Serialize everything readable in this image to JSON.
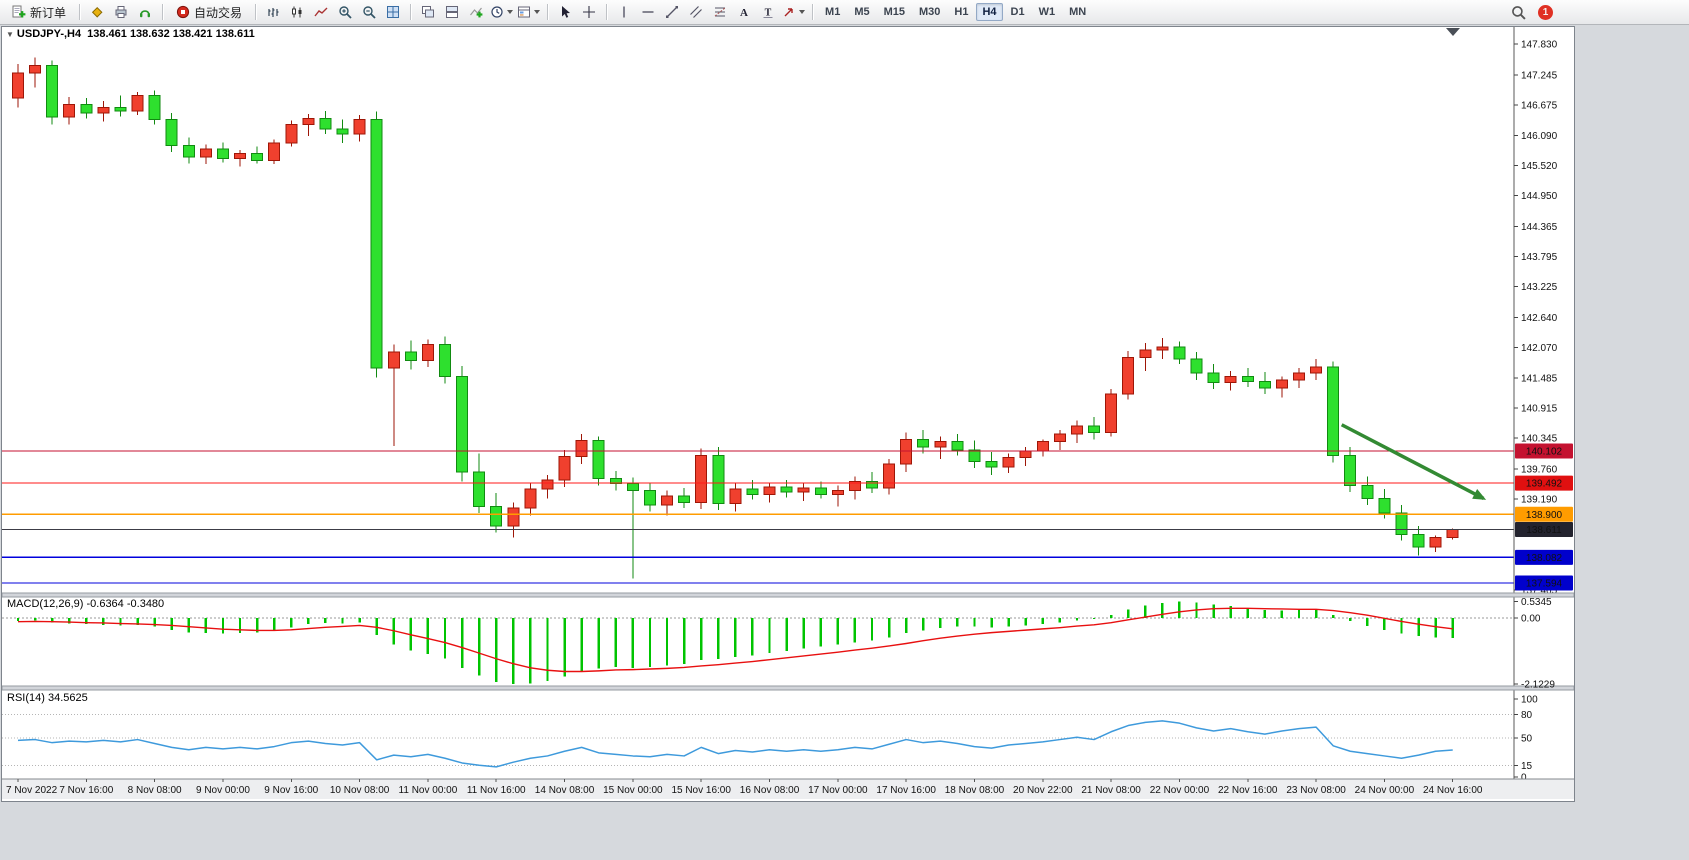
{
  "toolbar": {
    "new_order_label": "新订单",
    "autotrading_label": "自动交易",
    "timeframes": [
      "M1",
      "M5",
      "M15",
      "M30",
      "H1",
      "H4",
      "D1",
      "W1",
      "MN"
    ],
    "active_timeframe": "H4",
    "notification_count": "1",
    "icons": [
      "new-order",
      "market-watch",
      "print",
      "experts",
      "autotrading",
      "bar-chart",
      "candle-chart",
      "line-chart",
      "zoom-in",
      "zoom-out",
      "tile-windows",
      "cascade-windows",
      "tile-horizontal",
      "indicators",
      "periods",
      "templates",
      "cursor",
      "crosshair",
      "vertical-line",
      "horizontal-line",
      "trendline",
      "channel",
      "fibonacci",
      "text",
      "text-label",
      "arrows",
      "search",
      "notification"
    ]
  },
  "chart": {
    "title": "USDJPY-,H4",
    "ohlc": "138.461 138.632 138.421 138.611"
  },
  "chart_data": {
    "type": "candlestick",
    "symbol": "USDJPY-",
    "timeframe": "H4",
    "current": {
      "open": 138.461,
      "high": 138.632,
      "low": 138.421,
      "close": 138.611
    },
    "colors": {
      "bull_fill": "#f0402e",
      "bull_stroke": "#9e1607",
      "bear_fill": "#2ee02e",
      "bear_stroke": "#118a11",
      "macd_hist": "#00c400",
      "macd_signal": "#e81010",
      "rsi_line": "#3e9adc"
    },
    "price_axis": {
      "top_price": 148.153,
      "bottom_price": 137.405,
      "ticks": [
        "147.830",
        "147.245",
        "146.675",
        "146.090",
        "145.520",
        "144.950",
        "144.365",
        "143.795",
        "143.225",
        "142.640",
        "142.070",
        "141.485",
        "140.915",
        "140.345",
        "139.760",
        "139.190",
        "137.465"
      ]
    },
    "hlines": [
      {
        "price": 140.102,
        "label": "140.102",
        "color": "#c41230",
        "badge": "#c41230"
      },
      {
        "price": 139.492,
        "label": "139.492",
        "color": "#ff1a1a",
        "badge": "#e01010"
      },
      {
        "price": 138.9,
        "label": "138.900",
        "color": "#ff9c00",
        "badge": "#ff9c00"
      },
      {
        "price": 138.611,
        "label": "138.611",
        "color": "#3c3c46",
        "badge": "#23232e",
        "bid": true
      },
      {
        "price": 138.082,
        "label": "138.082",
        "color": "#0000dd",
        "badge": "#0000cc"
      },
      {
        "price": 137.594,
        "label": "137.594",
        "color": "#0000dd",
        "badge": "#0000cc"
      }
    ],
    "arrow": {
      "from_bar": 77.5,
      "from_price": 140.6,
      "to_bar": 85.8,
      "to_price": 139.2,
      "color": "#338a33"
    },
    "time_labels": [
      "7 Nov 2022",
      "7 Nov 16:00",
      "8 Nov 08:00",
      "9 Nov 00:00",
      "9 Nov 16:00",
      "10 Nov 08:00",
      "11 Nov 00:00",
      "11 Nov 16:00",
      "14 Nov 08:00",
      "15 Nov 00:00",
      "15 Nov 16:00",
      "16 Nov 08:00",
      "17 Nov 00:00",
      "17 Nov 16:00",
      "18 Nov 08:00",
      "20 Nov 22:00",
      "21 Nov 08:00",
      "22 Nov 00:00",
      "22 Nov 16:00",
      "23 Nov 08:00",
      "24 Nov 00:00",
      "24 Nov 16:00"
    ],
    "label_every": 4,
    "candles": [
      [
        146.8,
        147.45,
        146.62,
        147.28
      ],
      [
        147.28,
        147.57,
        147.0,
        147.42
      ],
      [
        147.42,
        147.52,
        146.3,
        146.44
      ],
      [
        146.44,
        146.82,
        146.3,
        146.68
      ],
      [
        146.68,
        146.8,
        146.42,
        146.52
      ],
      [
        146.52,
        146.75,
        146.36,
        146.62
      ],
      [
        146.62,
        146.85,
        146.45,
        146.56
      ],
      [
        146.56,
        146.92,
        146.48,
        146.85
      ],
      [
        146.85,
        146.95,
        146.3,
        146.4
      ],
      [
        146.4,
        146.52,
        145.78,
        145.9
      ],
      [
        145.9,
        146.05,
        145.56,
        145.68
      ],
      [
        145.68,
        145.92,
        145.55,
        145.84
      ],
      [
        145.84,
        145.96,
        145.58,
        145.66
      ],
      [
        145.66,
        145.82,
        145.5,
        145.75
      ],
      [
        145.75,
        145.88,
        145.56,
        145.62
      ],
      [
        145.62,
        146.02,
        145.55,
        145.95
      ],
      [
        145.95,
        146.38,
        145.88,
        146.3
      ],
      [
        146.3,
        146.5,
        146.08,
        146.42
      ],
      [
        146.42,
        146.56,
        146.12,
        146.22
      ],
      [
        146.22,
        146.4,
        145.95,
        146.12
      ],
      [
        146.12,
        146.48,
        145.98,
        146.4
      ],
      [
        146.4,
        146.55,
        141.5,
        141.68
      ],
      [
        141.68,
        142.12,
        140.2,
        141.98
      ],
      [
        141.98,
        142.2,
        141.65,
        141.82
      ],
      [
        141.82,
        142.22,
        141.7,
        142.12
      ],
      [
        142.12,
        142.28,
        141.38,
        141.52
      ],
      [
        141.52,
        141.72,
        139.52,
        139.7
      ],
      [
        139.7,
        140.05,
        138.92,
        139.05
      ],
      [
        139.05,
        139.3,
        138.55,
        138.68
      ],
      [
        138.68,
        139.12,
        138.46,
        139.02
      ],
      [
        139.02,
        139.48,
        138.88,
        139.38
      ],
      [
        139.38,
        139.65,
        139.2,
        139.55
      ],
      [
        139.55,
        140.12,
        139.42,
        140.0
      ],
      [
        140.0,
        140.42,
        139.85,
        140.3
      ],
      [
        140.3,
        140.38,
        139.45,
        139.58
      ],
      [
        139.58,
        139.72,
        139.35,
        139.48
      ],
      [
        139.48,
        139.6,
        137.68,
        139.35
      ],
      [
        139.35,
        139.5,
        138.95,
        139.08
      ],
      [
        139.08,
        139.35,
        138.88,
        139.25
      ],
      [
        139.25,
        139.4,
        139.02,
        139.12
      ],
      [
        139.12,
        140.15,
        139.0,
        140.02
      ],
      [
        140.02,
        140.18,
        138.98,
        139.1
      ],
      [
        139.1,
        139.48,
        138.95,
        139.38
      ],
      [
        139.38,
        139.55,
        139.18,
        139.28
      ],
      [
        139.28,
        139.5,
        139.12,
        139.42
      ],
      [
        139.42,
        139.55,
        139.22,
        139.32
      ],
      [
        139.32,
        139.48,
        139.15,
        139.4
      ],
      [
        139.4,
        139.52,
        139.2,
        139.28
      ],
      [
        139.28,
        139.45,
        139.05,
        139.35
      ],
      [
        139.35,
        139.62,
        139.18,
        139.52
      ],
      [
        139.52,
        139.7,
        139.3,
        139.4
      ],
      [
        139.4,
        139.95,
        139.28,
        139.85
      ],
      [
        139.85,
        140.45,
        139.7,
        140.32
      ],
      [
        140.32,
        140.5,
        140.05,
        140.18
      ],
      [
        140.18,
        140.38,
        139.95,
        140.28
      ],
      [
        140.28,
        140.42,
        140.02,
        140.12
      ],
      [
        140.12,
        140.3,
        139.78,
        139.9
      ],
      [
        139.9,
        140.08,
        139.65,
        139.8
      ],
      [
        139.8,
        140.05,
        139.68,
        139.98
      ],
      [
        139.98,
        140.18,
        139.82,
        140.1
      ],
      [
        140.1,
        140.32,
        140.0,
        140.28
      ],
      [
        140.28,
        140.5,
        140.12,
        140.42
      ],
      [
        140.42,
        140.68,
        140.25,
        140.58
      ],
      [
        140.58,
        140.75,
        140.32,
        140.45
      ],
      [
        140.45,
        141.28,
        140.38,
        141.18
      ],
      [
        141.18,
        142.0,
        141.08,
        141.88
      ],
      [
        141.88,
        142.15,
        141.62,
        142.02
      ],
      [
        142.02,
        142.25,
        141.85,
        142.08
      ],
      [
        142.08,
        142.18,
        141.75,
        141.85
      ],
      [
        141.85,
        141.98,
        141.45,
        141.58
      ],
      [
        141.58,
        141.75,
        141.28,
        141.4
      ],
      [
        141.4,
        141.62,
        141.25,
        141.52
      ],
      [
        141.52,
        141.68,
        141.32,
        141.42
      ],
      [
        141.42,
        141.6,
        141.18,
        141.3
      ],
      [
        141.3,
        141.52,
        141.12,
        141.45
      ],
      [
        141.45,
        141.68,
        141.3,
        141.58
      ],
      [
        141.58,
        141.85,
        141.45,
        141.7
      ],
      [
        141.7,
        141.8,
        139.88,
        140.02
      ],
      [
        140.02,
        140.18,
        139.32,
        139.45
      ],
      [
        139.45,
        139.62,
        139.08,
        139.2
      ],
      [
        139.2,
        139.38,
        138.82,
        138.92
      ],
      [
        138.92,
        139.08,
        138.4,
        138.52
      ],
      [
        138.52,
        138.68,
        138.12,
        138.28
      ],
      [
        138.28,
        138.5,
        138.18,
        138.46
      ],
      [
        138.461,
        138.632,
        138.421,
        138.611
      ]
    ],
    "macd": {
      "label": "MACD(12,26,9)",
      "main_value": "-0.6364",
      "signal_value": "-0.3480",
      "axis": [
        "0.5345",
        "0.00",
        "-2.1229"
      ],
      "histogram": [
        -0.1,
        -0.08,
        -0.15,
        -0.18,
        -0.2,
        -0.22,
        -0.24,
        -0.22,
        -0.28,
        -0.38,
        -0.46,
        -0.48,
        -0.5,
        -0.48,
        -0.46,
        -0.4,
        -0.3,
        -0.2,
        -0.16,
        -0.18,
        -0.14,
        -0.55,
        -0.85,
        -1.05,
        -1.15,
        -1.3,
        -1.6,
        -1.85,
        -2.05,
        -2.1229,
        -2.1,
        -2.02,
        -1.88,
        -1.7,
        -1.62,
        -1.58,
        -1.6,
        -1.58,
        -1.52,
        -1.48,
        -1.35,
        -1.32,
        -1.25,
        -1.2,
        -1.12,
        -1.06,
        -0.98,
        -0.92,
        -0.85,
        -0.78,
        -0.72,
        -0.62,
        -0.48,
        -0.4,
        -0.32,
        -0.28,
        -0.28,
        -0.3,
        -0.28,
        -0.24,
        -0.2,
        -0.14,
        -0.08,
        -0.04,
        0.1,
        0.28,
        0.4,
        0.48,
        0.5345,
        0.5,
        0.44,
        0.38,
        0.32,
        0.26,
        0.24,
        0.26,
        0.28,
        0.1,
        -0.1,
        -0.25,
        -0.38,
        -0.5,
        -0.58,
        -0.62,
        -0.6364
      ],
      "signal": [
        -0.12,
        -0.11,
        -0.12,
        -0.13,
        -0.15,
        -0.16,
        -0.18,
        -0.19,
        -0.21,
        -0.24,
        -0.28,
        -0.32,
        -0.36,
        -0.38,
        -0.4,
        -0.4,
        -0.38,
        -0.34,
        -0.3,
        -0.27,
        -0.24,
        -0.3,
        -0.41,
        -0.54,
        -0.66,
        -0.79,
        -0.95,
        -1.13,
        -1.31,
        -1.47,
        -1.6,
        -1.68,
        -1.72,
        -1.72,
        -1.7,
        -1.67,
        -1.66,
        -1.64,
        -1.62,
        -1.59,
        -1.54,
        -1.5,
        -1.45,
        -1.4,
        -1.34,
        -1.28,
        -1.22,
        -1.16,
        -1.1,
        -1.03,
        -0.97,
        -0.9,
        -0.82,
        -0.73,
        -0.65,
        -0.58,
        -0.52,
        -0.47,
        -0.43,
        -0.39,
        -0.35,
        -0.31,
        -0.26,
        -0.22,
        -0.15,
        -0.06,
        0.03,
        0.12,
        0.2,
        0.26,
        0.3,
        0.31,
        0.31,
        0.3,
        0.29,
        0.28,
        0.28,
        0.24,
        0.17,
        0.09,
        -0.01,
        -0.11,
        -0.2,
        -0.28,
        -0.348
      ]
    },
    "rsi": {
      "label": "RSI(14)",
      "value": "34.5625",
      "levels": [
        80,
        50,
        15
      ],
      "axis_labels": [
        "100",
        "80",
        "50",
        "15",
        "0"
      ],
      "values": [
        47,
        48,
        44,
        46,
        45,
        47,
        45,
        48,
        43,
        38,
        35,
        38,
        36,
        38,
        36,
        39,
        44,
        46,
        43,
        41,
        44,
        22,
        28,
        26,
        29,
        24,
        18,
        15,
        13,
        19,
        24,
        27,
        33,
        38,
        31,
        29,
        27,
        26,
        29,
        27,
        38,
        30,
        34,
        32,
        35,
        33,
        35,
        33,
        35,
        38,
        36,
        42,
        48,
        44,
        46,
        43,
        39,
        37,
        41,
        43,
        45,
        48,
        51,
        48,
        58,
        66,
        70,
        72,
        69,
        63,
        59,
        62,
        58,
        55,
        59,
        62,
        64,
        40,
        33,
        30,
        27,
        24,
        28,
        33,
        34.5625
      ]
    }
  }
}
